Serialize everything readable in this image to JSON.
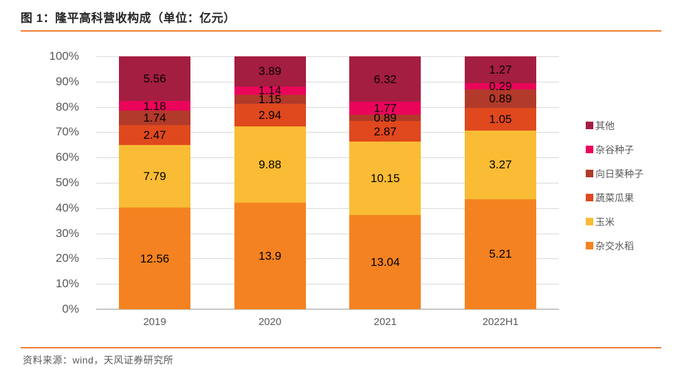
{
  "header": {
    "title": "图 1：隆平高科营收构成（单位：亿元）"
  },
  "footer": {
    "source": "资料来源：wind，天风证券研究所"
  },
  "colors": {
    "accent_rule": "#ED7D31",
    "grid": "#D9D9D9",
    "baseline": "#C6C6C6",
    "axis_text": "#595959",
    "title_text": "#262626",
    "value_text": "#000000"
  },
  "chart_data": {
    "type": "bar",
    "variant": "stacked-100-percent",
    "title": "隆平高科营收构成（单位：亿元）",
    "categories": [
      "2019",
      "2020",
      "2021",
      "2022H1"
    ],
    "series": [
      {
        "name": "杂交水稻",
        "color": "#F58220",
        "values": [
          "12.56",
          "13.9",
          "13.04",
          "5.21"
        ]
      },
      {
        "name": "玉米",
        "color": "#F9BC34",
        "values": [
          "7.79",
          "9.88",
          "10.15",
          "3.27"
        ]
      },
      {
        "name": "蔬菜瓜果",
        "color": "#E0481E",
        "values": [
          "2.47",
          "2.94",
          "2.87",
          "1.05"
        ]
      },
      {
        "name": "向日葵种子",
        "color": "#B13A2A",
        "values": [
          "1.74",
          "1.15",
          "0.89",
          "0.89"
        ]
      },
      {
        "name": "杂谷种子",
        "color": "#EA055A",
        "values": [
          "1.18",
          "1.14",
          "1.77",
          "0.29"
        ]
      },
      {
        "name": "其他",
        "color": "#A41E41",
        "values": [
          "5.56",
          "3.89",
          "6.32",
          "1.27"
        ]
      }
    ],
    "legend_order_top_to_bottom": [
      "其他",
      "杂谷种子",
      "向日葵种子",
      "蔬菜瓜果",
      "玉米",
      "杂交水稻"
    ],
    "legend_position": "right",
    "y_ticks": [
      "100%",
      "90%",
      "80%",
      "70%",
      "60%",
      "50%",
      "40%",
      "30%",
      "20%",
      "10%",
      "0%"
    ],
    "ylim": [
      0,
      100
    ],
    "grid": true
  }
}
